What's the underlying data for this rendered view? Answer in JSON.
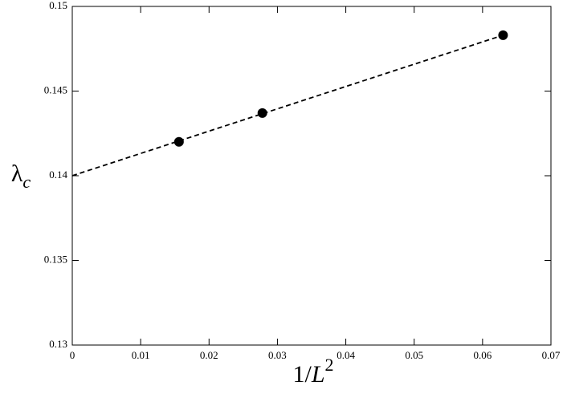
{
  "chart_data": {
    "type": "scatter",
    "xlabel": "1/L2",
    "ylabel": "λc",
    "xlim": [
      0,
      0.07
    ],
    "xticks": [
      0,
      0.01,
      0.02,
      0.03,
      0.04,
      0.05,
      0.06,
      0.07
    ],
    "ylim": [
      0.13,
      0.15
    ],
    "yticks": [
      0.13,
      0.135,
      0.14,
      0.145,
      0.15
    ],
    "series": [
      {
        "type": "line",
        "dashed": true,
        "color": "#000000",
        "x": [
          0,
          0.063
        ],
        "values": [
          0.14,
          0.1483
        ]
      },
      {
        "type": "scatter",
        "color": "#000000",
        "x": [
          0.0156,
          0.0278,
          0.063
        ],
        "values": [
          0.142,
          0.1437,
          0.1483
        ]
      }
    ]
  }
}
